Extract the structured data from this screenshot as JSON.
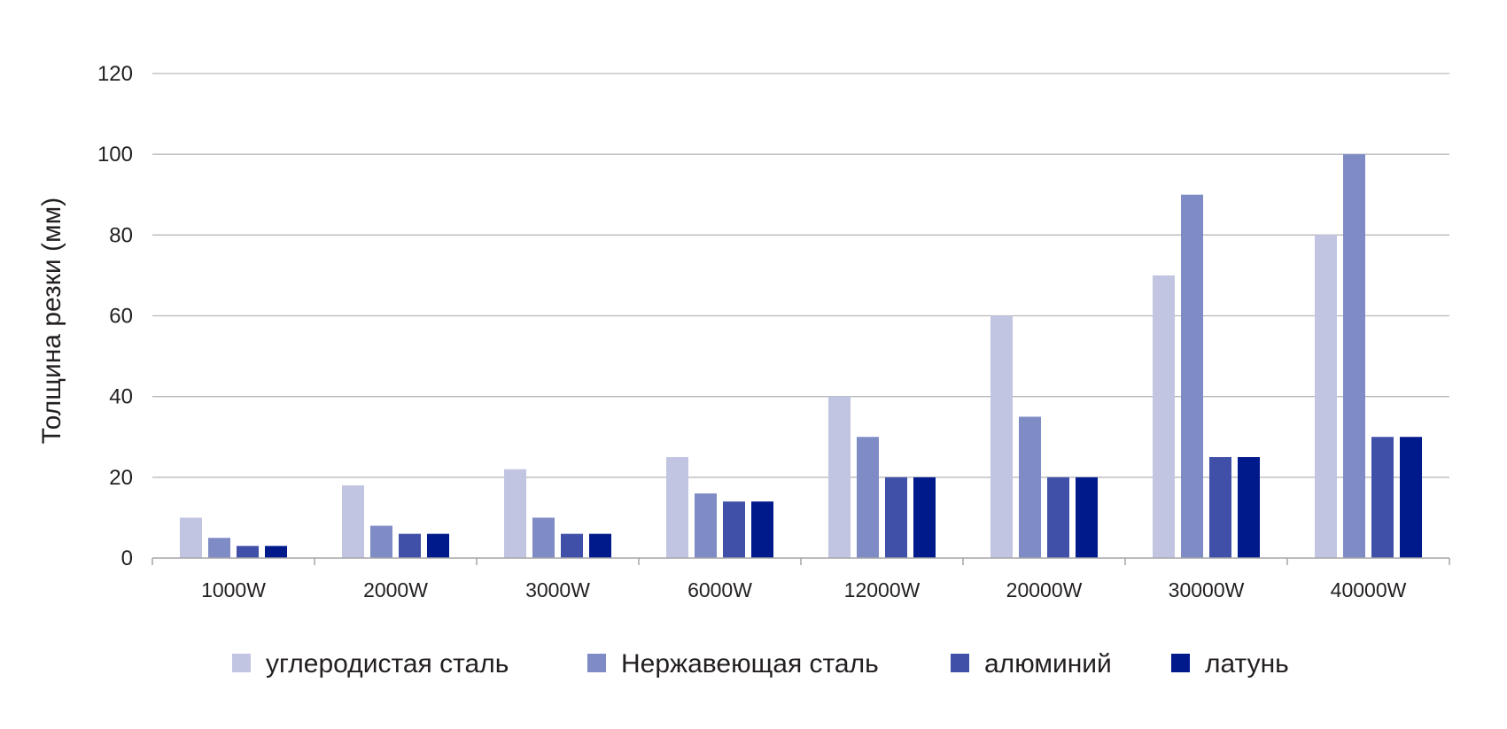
{
  "chart_data": {
    "type": "bar",
    "title": "",
    "xlabel": "",
    "ylabel": "Толщина резки (мм)",
    "ylim": [
      0,
      120
    ],
    "yticks": [
      0,
      20,
      40,
      60,
      80,
      100,
      120
    ],
    "grid": true,
    "legend_position": "bottom",
    "categories": [
      "1000W",
      "2000W",
      "3000W",
      "6000W",
      "12000W",
      "20000W",
      "30000W",
      "40000W"
    ],
    "series": [
      {
        "name": "углеродистая сталь",
        "color": "#c1c5e2",
        "values": [
          10,
          18,
          22,
          25,
          40,
          60,
          70,
          80
        ]
      },
      {
        "name": "Нержавеющая сталь",
        "color": "#7f8bc5",
        "values": [
          5,
          8,
          10,
          16,
          30,
          35,
          90,
          100
        ]
      },
      {
        "name": "алюминий",
        "color": "#4050a8",
        "values": [
          3,
          6,
          6,
          14,
          20,
          20,
          25,
          30
        ]
      },
      {
        "name": "латунь",
        "color": "#001a8c",
        "values": [
          3,
          6,
          6,
          14,
          20,
          20,
          25,
          30
        ]
      }
    ]
  }
}
